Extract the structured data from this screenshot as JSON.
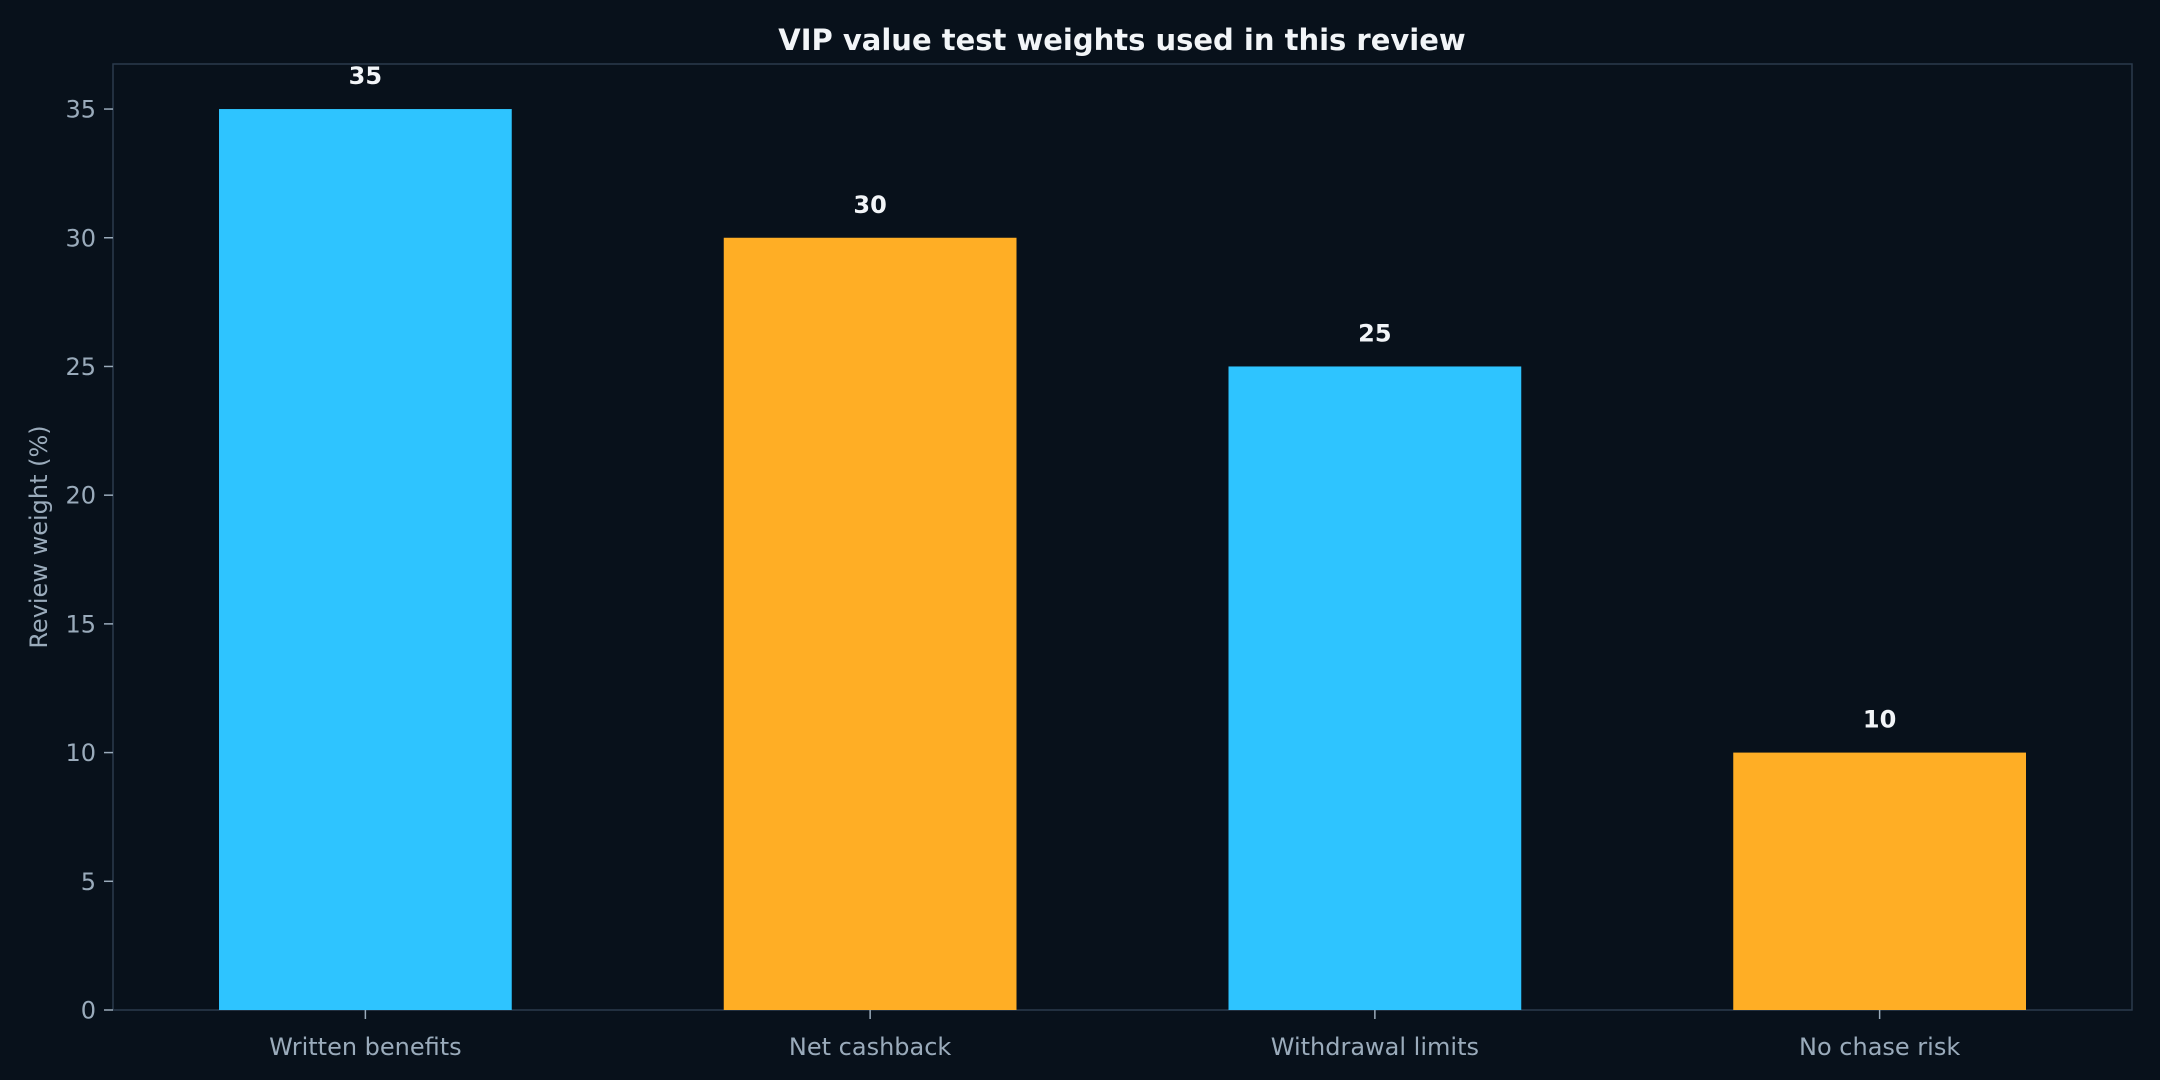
{
  "chart_data": {
    "type": "bar",
    "title": "VIP value test weights used in this review",
    "xlabel": "",
    "ylabel": "Review weight (%)",
    "categories": [
      "Written benefits",
      "Net cashback",
      "Withdrawal limits",
      "No chase risk"
    ],
    "values": [
      35,
      30,
      25,
      10
    ],
    "value_labels": [
      "35",
      "30",
      "25",
      "10"
    ],
    "bar_colors": [
      "#2ec4ff",
      "#ffae25",
      "#2ec4ff",
      "#ffae25"
    ],
    "ylim": [
      0,
      36.75
    ],
    "yticks": [
      0,
      5,
      10,
      15,
      20,
      25,
      30,
      35
    ],
    "ytick_labels": [
      "0",
      "5",
      "10",
      "15",
      "20",
      "25",
      "30",
      "35"
    ],
    "grid": false,
    "legend": "none"
  },
  "colors": {
    "background": "#08111b",
    "frame": "#2a3a4c",
    "tick_text": "#9aabbb",
    "title_text": "#f2f5f8"
  }
}
